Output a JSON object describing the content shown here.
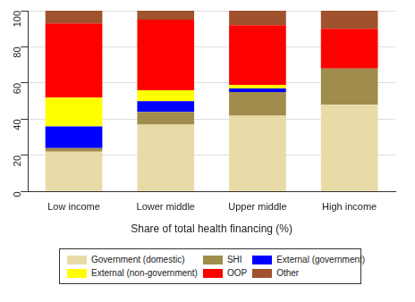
{
  "chart_data": {
    "type": "bar",
    "stacked": true,
    "x_label": "Share of total health financing (%)",
    "categories": [
      "Low income",
      "Lower middle",
      "Upper middle",
      "High income"
    ],
    "series": [
      {
        "name": "Government (domestic)",
        "color": "#e8dba8",
        "values": [
          22,
          37,
          42,
          48
        ]
      },
      {
        "name": "SHI",
        "color": "#a08c4c",
        "values": [
          2,
          7,
          13,
          20
        ]
      },
      {
        "name": "External (government)",
        "color": "#0000ff",
        "values": [
          12,
          6,
          2,
          0
        ]
      },
      {
        "name": "External (non-government)",
        "color": "#ffff00",
        "values": [
          16,
          6,
          2,
          0
        ]
      },
      {
        "name": "OOP",
        "color": "#ff0000",
        "values": [
          41,
          39,
          33,
          22
        ]
      },
      {
        "name": "Other",
        "color": "#a0522d",
        "values": [
          7,
          5,
          8,
          10
        ]
      }
    ],
    "ylim": [
      0,
      100
    ],
    "yticks": [
      0,
      20,
      40,
      60,
      80,
      100
    ],
    "grid": true,
    "legend": "bottom"
  }
}
